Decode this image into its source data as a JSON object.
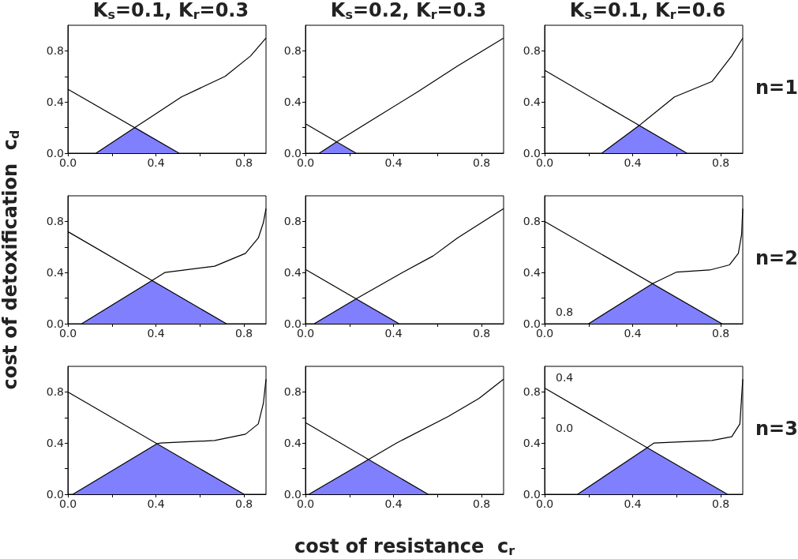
{
  "chart_data": [
    {
      "type": "line",
      "title": "K$_{s}$=0.1, K$_{r}$=0.3",
      "xlim": [
        0,
        0.9
      ],
      "ylim": [
        0,
        1
      ],
      "xticks": [
        {
          "value": 0,
          "label": "0.0"
        },
        {
          "value": 0.2,
          "label": null
        },
        {
          "value": 0.4,
          "label": "0.4"
        },
        {
          "value": 0.6,
          "label": null
        },
        {
          "value": 0.8,
          "label": "0.8"
        }
      ],
      "yticks": [
        {
          "value": 0,
          "label": "0.0"
        },
        {
          "value": 0.2,
          "label": null
        },
        {
          "value": 0.4,
          "label": "0.4"
        },
        {
          "value": 0.6,
          "label": null
        },
        {
          "value": 0.8,
          "label": "0.8"
        }
      ],
      "series": [
        {
          "type": "area",
          "color": "#8080ff",
          "x": [
            0.128,
            0.307,
            0.505
          ],
          "values": [
            0,
            0.203,
            0
          ]
        },
        {
          "color": "#000000",
          "x": [
            0,
            0.505
          ],
          "values": [
            0.5,
            0
          ]
        },
        {
          "color": "#000000",
          "x": [
            0.128,
            0.307,
            0.516,
            0.714,
            0.83,
            0.9
          ],
          "values": [
            0,
            0.203,
            0.44,
            0.6,
            0.76,
            0.9
          ]
        }
      ]
    },
    {
      "type": "line",
      "title": "K$_{s}$=0.2, K$_{r}$=0.3",
      "xlim": [
        0,
        0.9
      ],
      "ylim": [
        0,
        1
      ],
      "xticks": [
        {
          "value": 0,
          "label": "0.0"
        },
        {
          "value": 0.2,
          "label": null
        },
        {
          "value": 0.4,
          "label": "0.4"
        },
        {
          "value": 0.6,
          "label": null
        },
        {
          "value": 0.8,
          "label": "0.8"
        }
      ],
      "yticks": [
        {
          "value": 0,
          "label": "0.0"
        },
        {
          "value": 0.2,
          "label": null
        },
        {
          "value": 0.4,
          "label": "0.4"
        },
        {
          "value": 0.6,
          "label": null
        },
        {
          "value": 0.8,
          "label": "0.8"
        }
      ],
      "series": [
        {
          "type": "area",
          "color": "#8080ff",
          "x": [
            0.063,
            0.14,
            0.23
          ],
          "values": [
            0,
            0.087,
            0
          ]
        },
        {
          "color": "#000000",
          "x": [
            0,
            0.23
          ],
          "values": [
            0.23,
            0
          ]
        },
        {
          "color": "#000000",
          "x": [
            0.063,
            0.14,
            0.51,
            0.69,
            0.9
          ],
          "values": [
            0,
            0.087,
            0.48,
            0.68,
            0.9
          ]
        }
      ]
    },
    {
      "type": "line",
      "title": "K$_{s}$=0.1, K$_{r}$=0.6",
      "y2label": "n=1",
      "xlim": [
        0,
        0.9
      ],
      "ylim": [
        0,
        1
      ],
      "xticks": [
        {
          "value": 0,
          "label": "0.0"
        },
        {
          "value": 0.2,
          "label": null
        },
        {
          "value": 0.4,
          "label": "0.4"
        },
        {
          "value": 0.6,
          "label": null
        },
        {
          "value": 0.8,
          "label": "0.8"
        }
      ],
      "yticks": [
        {
          "value": 0,
          "label": "0.0"
        },
        {
          "value": 0.2,
          "label": null
        },
        {
          "value": 0.4,
          "label": "0.4"
        },
        {
          "value": 0.6,
          "label": null
        },
        {
          "value": 0.8,
          "label": "0.8"
        }
      ],
      "series": [
        {
          "type": "area",
          "color": "#8080ff",
          "x": [
            0.26,
            0.43,
            0.646
          ],
          "values": [
            0,
            0.217,
            0
          ]
        },
        {
          "color": "#000000",
          "x": [
            0,
            0.646
          ],
          "values": [
            0.648,
            0
          ]
        },
        {
          "color": "#000000",
          "x": [
            0.26,
            0.43,
            0.59,
            0.76,
            0.85,
            0.9
          ],
          "values": [
            0,
            0.217,
            0.44,
            0.56,
            0.76,
            0.9
          ]
        }
      ]
    },
    {
      "type": "line",
      "ylabel": "cost of detoxification  c$_{d}$",
      "xlim": [
        0,
        0.9
      ],
      "ylim": [
        0,
        1
      ],
      "xticks": [
        {
          "value": 0,
          "label": "0.0"
        },
        {
          "value": 0.2,
          "label": null
        },
        {
          "value": 0.4,
          "label": "0.4"
        },
        {
          "value": 0.6,
          "label": null
        },
        {
          "value": 0.8,
          "label": "0.8"
        }
      ],
      "yticks": [
        {
          "value": 0,
          "label": "0.0"
        },
        {
          "value": 0.2,
          "label": null
        },
        {
          "value": 0.4,
          "label": "0.4"
        },
        {
          "value": 0.6,
          "label": null
        },
        {
          "value": 0.8,
          "label": "0.8"
        }
      ],
      "series": [
        {
          "type": "area",
          "color": "#8080ff",
          "x": [
            0.063,
            0.384,
            0.72
          ],
          "values": [
            0,
            0.34,
            0
          ]
        },
        {
          "color": "#000000",
          "x": [
            0,
            0.72
          ],
          "values": [
            0.72,
            0
          ]
        },
        {
          "color": "#000000",
          "x": [
            0.063,
            0.384,
            0.44,
            0.667,
            0.807,
            0.865,
            0.888,
            0.9
          ],
          "values": [
            0,
            0.34,
            0.4,
            0.45,
            0.55,
            0.67,
            0.79,
            0.9
          ]
        }
      ]
    },
    {
      "type": "line",
      "xlim": [
        0,
        0.9
      ],
      "ylim": [
        0,
        1
      ],
      "xticks": [
        {
          "value": 0,
          "label": "0.0"
        },
        {
          "value": 0.2,
          "label": null
        },
        {
          "value": 0.4,
          "label": "0.4"
        },
        {
          "value": 0.6,
          "label": null
        },
        {
          "value": 0.8,
          "label": "0.8"
        }
      ],
      "yticks": [
        {
          "value": 0,
          "label": "0.0"
        },
        {
          "value": 0.2,
          "label": null
        },
        {
          "value": 0.4,
          "label": "0.4"
        },
        {
          "value": 0.6,
          "label": null
        },
        {
          "value": 0.8,
          "label": "0.8"
        }
      ],
      "series": [
        {
          "type": "area",
          "color": "#8080ff",
          "x": [
            0.04,
            0.23,
            0.425
          ],
          "values": [
            0,
            0.195,
            0
          ]
        },
        {
          "color": "#000000",
          "x": [
            0,
            0.425
          ],
          "values": [
            0.424,
            0
          ]
        },
        {
          "color": "#000000",
          "x": [
            0.04,
            0.23,
            0.44,
            0.58,
            0.69,
            0.9
          ],
          "values": [
            0,
            0.195,
            0.4,
            0.53,
            0.67,
            0.9
          ]
        }
      ]
    },
    {
      "type": "line",
      "y2label": "n=2",
      "annotations": [
        "0.8"
      ],
      "xlim": [
        0,
        0.9
      ],
      "ylim": [
        0,
        1
      ],
      "xticks": [
        {
          "value": 0,
          "label": "0.0"
        },
        {
          "value": 0.2,
          "label": null
        },
        {
          "value": 0.4,
          "label": "0.4"
        },
        {
          "value": 0.6,
          "label": null
        },
        {
          "value": 0.8,
          "label": "0.8"
        }
      ],
      "yticks": [
        {
          "value": 0,
          "label": "0.0"
        },
        {
          "value": 0.2,
          "label": null
        },
        {
          "value": 0.4,
          "label": "0.4"
        },
        {
          "value": 0.6,
          "label": null
        },
        {
          "value": 0.8,
          "label": "0.8"
        }
      ],
      "series": [
        {
          "type": "area",
          "color": "#8080ff",
          "x": [
            0.2,
            0.49,
            0.805
          ],
          "values": [
            0,
            0.313,
            0
          ]
        },
        {
          "color": "#000000",
          "x": [
            0,
            0.805
          ],
          "values": [
            0.8,
            0
          ]
        },
        {
          "color": "#000000",
          "x": [
            0.2,
            0.49,
            0.6,
            0.75,
            0.84,
            0.88,
            0.895,
            0.9
          ],
          "values": [
            0,
            0.313,
            0.404,
            0.42,
            0.46,
            0.55,
            0.7,
            0.9
          ]
        }
      ]
    },
    {
      "type": "line",
      "xlim": [
        0,
        0.9
      ],
      "ylim": [
        0,
        1
      ],
      "xticks": [
        {
          "value": 0,
          "label": "0.0"
        },
        {
          "value": 0.2,
          "label": null
        },
        {
          "value": 0.4,
          "label": "0.4"
        },
        {
          "value": 0.6,
          "label": null
        },
        {
          "value": 0.8,
          "label": "0.8"
        }
      ],
      "yticks": [
        {
          "value": 0,
          "label": "0.0"
        },
        {
          "value": 0.2,
          "label": null
        },
        {
          "value": 0.4,
          "label": "0.4"
        },
        {
          "value": 0.6,
          "label": null
        },
        {
          "value": 0.8,
          "label": "0.8"
        }
      ],
      "series": [
        {
          "type": "area",
          "color": "#8080ff",
          "x": [
            0.023,
            0.405,
            0.8
          ],
          "values": [
            0,
            0.395,
            0
          ]
        },
        {
          "color": "#000000",
          "x": [
            0,
            0.8
          ],
          "values": [
            0.8,
            0
          ]
        },
        {
          "color": "#000000",
          "x": [
            0.023,
            0.405,
            0.42,
            0.667,
            0.807,
            0.865,
            0.888,
            0.9
          ],
          "values": [
            0,
            0.395,
            0.4,
            0.42,
            0.47,
            0.55,
            0.71,
            0.9
          ]
        }
      ]
    },
    {
      "type": "line",
      "xlabel": "cost of resistance  c$_{r}$",
      "xlim": [
        0,
        0.9
      ],
      "ylim": [
        0,
        1
      ],
      "xticks": [
        {
          "value": 0,
          "label": "0.0"
        },
        {
          "value": 0.2,
          "label": null
        },
        {
          "value": 0.4,
          "label": "0.4"
        },
        {
          "value": 0.6,
          "label": null
        },
        {
          "value": 0.8,
          "label": "0.8"
        }
      ],
      "yticks": [
        {
          "value": 0,
          "label": "0.0"
        },
        {
          "value": 0.2,
          "label": null
        },
        {
          "value": 0.4,
          "label": "0.4"
        },
        {
          "value": 0.6,
          "label": null
        },
        {
          "value": 0.8,
          "label": "0.8"
        }
      ],
      "series": [
        {
          "type": "area",
          "color": "#8080ff",
          "x": [
            0.016,
            0.286,
            0.557
          ],
          "values": [
            0,
            0.272,
            0
          ]
        },
        {
          "color": "#000000",
          "x": [
            0,
            0.557
          ],
          "values": [
            0.56,
            0
          ]
        },
        {
          "color": "#000000",
          "x": [
            0.016,
            0.286,
            0.413,
            0.65,
            0.789,
            0.9
          ],
          "values": [
            0,
            0.272,
            0.4,
            0.61,
            0.75,
            0.9
          ]
        }
      ]
    },
    {
      "type": "line",
      "y2label": "n=3",
      "annotations": [
        "0.4",
        "0.0"
      ],
      "xlim": [
        0,
        0.9
      ],
      "ylim": [
        0,
        1
      ],
      "xticks": [
        {
          "value": 0,
          "label": "0.0"
        },
        {
          "value": 0.2,
          "label": null
        },
        {
          "value": 0.4,
          "label": "0.4"
        },
        {
          "value": 0.6,
          "label": null
        },
        {
          "value": 0.8,
          "label": "0.8"
        }
      ],
      "yticks": [
        {
          "value": 0,
          "label": "0.0"
        },
        {
          "value": 0.2,
          "label": null
        },
        {
          "value": 0.4,
          "label": "0.4"
        },
        {
          "value": 0.6,
          "label": null
        },
        {
          "value": 0.8,
          "label": "0.8"
        }
      ],
      "series": [
        {
          "type": "area",
          "color": "#8080ff",
          "x": [
            0.15,
            0.466,
            0.83
          ],
          "values": [
            0,
            0.364,
            0
          ]
        },
        {
          "color": "#000000",
          "x": [
            0,
            0.83
          ],
          "values": [
            0.83,
            0
          ]
        },
        {
          "color": "#000000",
          "x": [
            0.15,
            0.466,
            0.496,
            0.76,
            0.85,
            0.887,
            0.9
          ],
          "values": [
            0,
            0.364,
            0.4,
            0.42,
            0.45,
            0.55,
            0.9
          ]
        }
      ]
    }
  ]
}
